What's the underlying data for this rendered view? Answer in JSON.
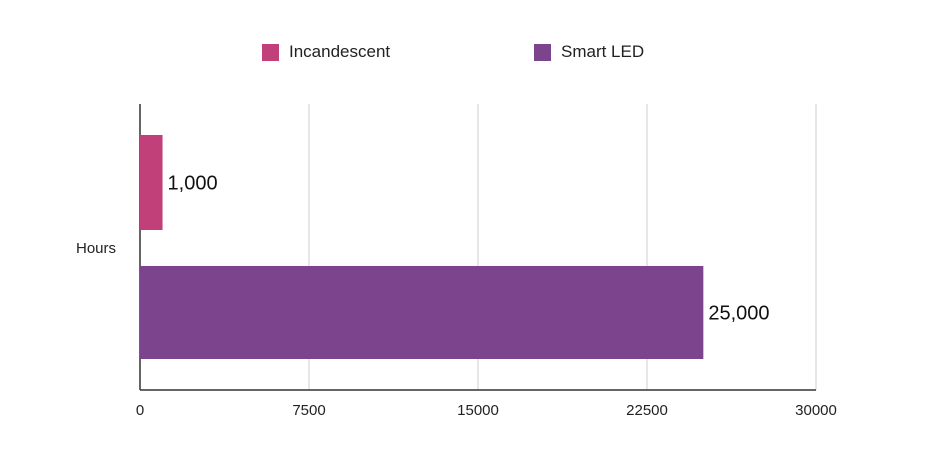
{
  "chart_data": {
    "type": "bar",
    "orientation": "horizontal",
    "categories": [
      "Hours"
    ],
    "series": [
      {
        "name": "Incandescent",
        "values": [
          1000
        ],
        "color": "#c2407a",
        "value_label": "1,000"
      },
      {
        "name": "Smart LED",
        "values": [
          25000
        ],
        "color": "#7b448c",
        "value_label": "25,000"
      }
    ],
    "title": "",
    "xlabel": "",
    "ylabel": "",
    "xlim": [
      0,
      30000
    ],
    "x_ticks": [
      0,
      7500,
      15000,
      22500,
      30000
    ],
    "x_tick_labels": [
      "0",
      "7500",
      "15000",
      "22500",
      "30000"
    ],
    "category_label": "Hours",
    "grid": {
      "vertical": true,
      "horizontal": false
    },
    "legend": {
      "position": "top-center"
    }
  }
}
